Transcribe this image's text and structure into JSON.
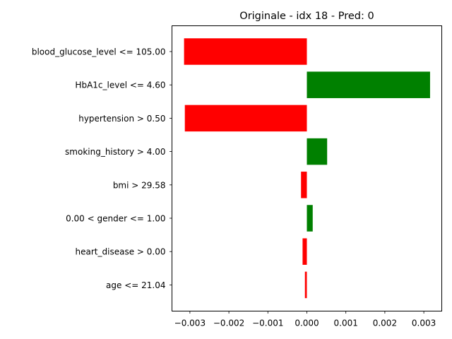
{
  "chart_data": {
    "type": "bar",
    "orientation": "horizontal",
    "title": "Originale - idx 18 - Pred: 0",
    "xlabel": "",
    "ylabel": "",
    "xlim": [
      -0.00346,
      0.00346
    ],
    "xticks": [
      -0.003,
      -0.002,
      -0.001,
      0.0,
      0.001,
      0.002,
      0.003
    ],
    "xtick_labels": [
      "−0.003",
      "−0.002",
      "−0.001",
      "0.000",
      "0.001",
      "0.002",
      "0.003"
    ],
    "grid": false,
    "legend": "none",
    "categories": [
      "blood_glucose_level <= 105.00",
      "HbA1c_level <= 4.60",
      "hypertension > 0.50",
      "smoking_history > 4.00",
      "bmi > 29.58",
      "0.00 < gender <= 1.00",
      "heart_disease > 0.00",
      "age <= 21.04"
    ],
    "values": [
      -0.00315,
      0.00316,
      -0.00313,
      0.00052,
      -0.00015,
      0.00015,
      -0.00011,
      -5e-05
    ],
    "colors": {
      "positive": "#008000",
      "negative": "#ff0000"
    }
  }
}
